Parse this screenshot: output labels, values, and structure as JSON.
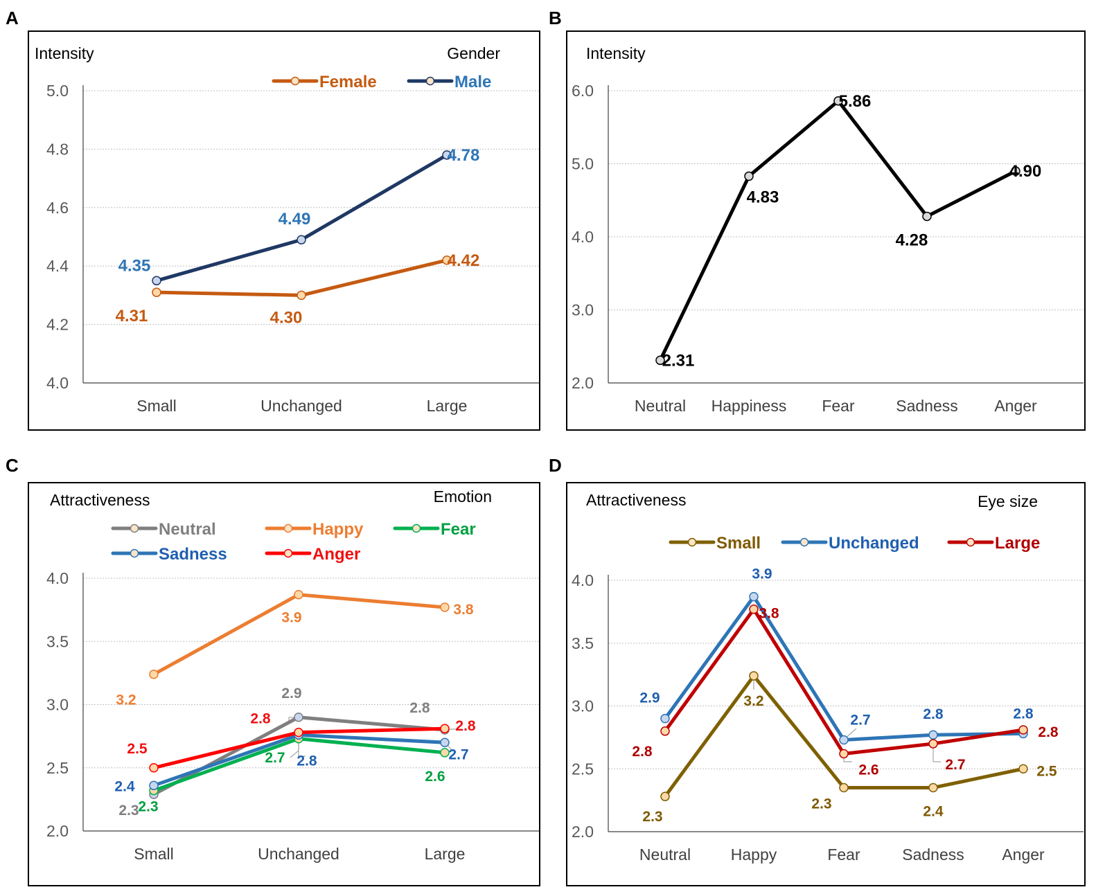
{
  "chart_data": [
    {
      "panel": "A",
      "type": "line",
      "title": "",
      "ylabel": "Intensity",
      "legend_title": "Gender",
      "legend_placement": "top-right",
      "categories": [
        "Small",
        "Unchanged",
        "Large"
      ],
      "ylim": [
        4.0,
        5.0
      ],
      "yticks": [
        "4.0",
        "4.2",
        "4.4",
        "4.6",
        "4.8",
        "5.0"
      ],
      "grid": true,
      "series": [
        {
          "name": "Female",
          "color": "#c55a11",
          "values": [
            4.31,
            4.3,
            4.42
          ],
          "labels": [
            "4.31",
            "4.30",
            "4.42"
          ]
        },
        {
          "name": "Male",
          "color": "#1f3864",
          "label_color": "#2e75b6",
          "values": [
            4.35,
            4.49,
            4.78
          ],
          "labels": [
            "4.35",
            "4.49",
            "4.78"
          ]
        }
      ]
    },
    {
      "panel": "B",
      "type": "line",
      "title": "",
      "ylabel": "Intensity",
      "categories": [
        "Neutral",
        "Happiness",
        "Fear",
        "Sadness",
        "Anger"
      ],
      "ylim": [
        2.0,
        6.0
      ],
      "yticks": [
        "2.0",
        "3.0",
        "4.0",
        "5.0",
        "6.0"
      ],
      "grid": true,
      "series": [
        {
          "name": "Intensity",
          "color": "#000000",
          "values": [
            2.31,
            4.83,
            5.86,
            4.28,
            4.9
          ],
          "labels": [
            "2.31",
            "4.83",
            "5.86",
            "4.28",
            "4.90"
          ]
        }
      ]
    },
    {
      "panel": "C",
      "type": "line",
      "title": "",
      "ylabel": "Attractiveness",
      "legend_title": "Emotion",
      "legend_placement": "top",
      "categories": [
        "Small",
        "Unchanged",
        "Large"
      ],
      "ylim": [
        2.0,
        4.0
      ],
      "yticks": [
        "2.0",
        "2.5",
        "3.0",
        "3.5",
        "4.0"
      ],
      "grid": true,
      "series": [
        {
          "name": "Neutral",
          "color": "#7f7f7f",
          "values": [
            2.29,
            2.9,
            2.8
          ],
          "labels": [
            "2.3",
            "2.9",
            "2.8"
          ]
        },
        {
          "name": "Happy",
          "color": "#ed7d31",
          "values": [
            3.24,
            3.87,
            3.77
          ],
          "labels": [
            "3.2",
            "3.9",
            "3.8"
          ]
        },
        {
          "name": "Fear",
          "color": "#00b050",
          "label_color": "#00a040",
          "values": [
            2.32,
            2.73,
            2.62
          ],
          "labels": [
            "2.3",
            "2.7",
            "2.6"
          ]
        },
        {
          "name": "Sadness",
          "color": "#2e75b6",
          "label_color": "#1f5fb0",
          "values": [
            2.36,
            2.76,
            2.7
          ],
          "labels": [
            "2.4",
            "2.8",
            "2.7"
          ]
        },
        {
          "name": "Anger",
          "color": "#ff0000",
          "label_color": "#ee1111",
          "values": [
            2.5,
            2.78,
            2.81
          ],
          "labels": [
            "2.5",
            "2.8",
            "2.8"
          ]
        }
      ]
    },
    {
      "panel": "D",
      "type": "line",
      "title": "",
      "ylabel": "Attractiveness",
      "legend_title": "Eye size",
      "legend_placement": "top",
      "categories": [
        "Neutral",
        "Happy",
        "Fear",
        "Sadness",
        "Anger"
      ],
      "ylim": [
        2.0,
        4.0
      ],
      "yticks": [
        "2.0",
        "2.5",
        "3.0",
        "3.5",
        "4.0"
      ],
      "grid": true,
      "series": [
        {
          "name": "Small",
          "color": "#7f6000",
          "label_color": "#7f5a00",
          "values": [
            2.28,
            3.24,
            2.35,
            2.35,
            2.5
          ],
          "labels": [
            "2.3",
            "3.2",
            "2.3",
            "2.4",
            "2.5"
          ]
        },
        {
          "name": "Unchanged",
          "color": "#2e75b6",
          "label_color": "#1f5fb0",
          "values": [
            2.9,
            3.87,
            2.73,
            2.77,
            2.78
          ],
          "labels": [
            "2.9",
            "3.9",
            "2.7",
            "2.8",
            "2.8"
          ]
        },
        {
          "name": "Large",
          "color": "#c00000",
          "label_color": "#b00000",
          "values": [
            2.8,
            3.77,
            2.62,
            2.7,
            2.81
          ],
          "labels": [
            "2.8",
            "3.8",
            "2.6",
            "2.7",
            "2.8"
          ]
        }
      ]
    }
  ]
}
